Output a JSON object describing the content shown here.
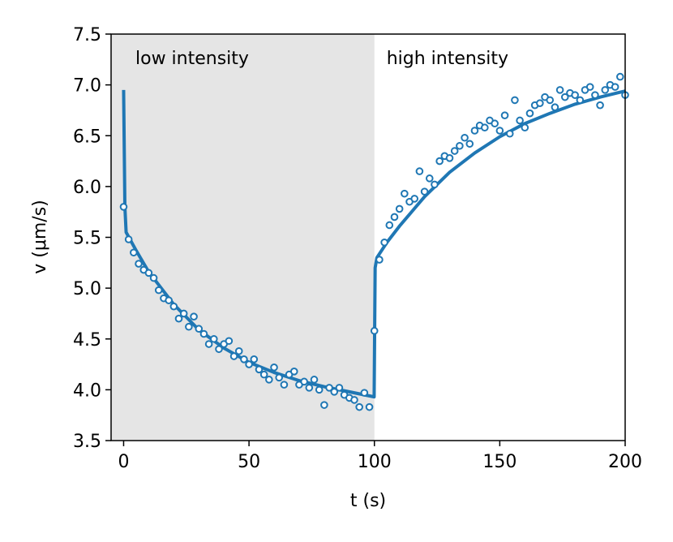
{
  "chart_data": {
    "type": "scatter",
    "xlabel": "t (s)",
    "ylabel": "v (μm/s)",
    "annotations": [
      "low intensity",
      "high intensity"
    ],
    "shaded_xrange": [
      -5,
      100
    ],
    "shade_color": "#e5e5e5",
    "xlim": [
      -5,
      200
    ],
    "xticks": [
      0,
      50,
      100,
      150,
      200
    ],
    "ylim": [
      3.5,
      7.5
    ],
    "yticks": [
      3.5,
      {
        "value": 4,
        "label": "4.0"
      },
      4.5,
      {
        "value": 5,
        "label": "5.0"
      },
      5.5,
      {
        "value": 6,
        "label": "6.0"
      },
      6.5,
      {
        "value": 7,
        "label": "7.0"
      },
      7.5
    ],
    "color": "#1f77b4",
    "points": {
      "x": [
        0,
        2,
        4,
        6,
        8,
        10,
        12,
        14,
        16,
        18,
        20,
        22,
        24,
        26,
        28,
        30,
        32,
        34,
        36,
        38,
        40,
        42,
        44,
        46,
        48,
        50,
        52,
        54,
        56,
        58,
        60,
        62,
        64,
        66,
        68,
        70,
        72,
        74,
        76,
        78,
        80,
        82,
        84,
        86,
        88,
        90,
        92,
        94,
        96,
        98,
        100,
        102,
        104,
        106,
        108,
        110,
        112,
        114,
        116,
        118,
        120,
        122,
        124,
        126,
        128,
        130,
        132,
        134,
        136,
        138,
        140,
        142,
        144,
        146,
        148,
        150,
        152,
        154,
        156,
        158,
        160,
        162,
        164,
        166,
        168,
        170,
        172,
        174,
        176,
        178,
        180,
        182,
        184,
        186,
        188,
        190,
        192,
        194,
        196,
        198,
        200
      ],
      "values": [
        5.8,
        5.48,
        5.35,
        5.24,
        5.18,
        5.15,
        5.1,
        4.98,
        4.9,
        4.88,
        4.82,
        4.7,
        4.75,
        4.62,
        4.72,
        4.6,
        4.55,
        4.45,
        4.5,
        4.4,
        4.45,
        4.48,
        4.33,
        4.38,
        4.3,
        4.25,
        4.3,
        4.2,
        4.15,
        4.1,
        4.22,
        4.12,
        4.05,
        4.15,
        4.18,
        4.05,
        4.08,
        4.02,
        4.1,
        4.0,
        3.85,
        4.02,
        3.98,
        4.02,
        3.95,
        3.92,
        3.9,
        3.83,
        3.97,
        3.83,
        4.58,
        5.28,
        5.45,
        5.62,
        5.7,
        5.78,
        5.93,
        5.85,
        5.88,
        6.15,
        5.95,
        6.08,
        6.02,
        6.25,
        6.3,
        6.28,
        6.35,
        6.4,
        6.48,
        6.42,
        6.55,
        6.6,
        6.58,
        6.65,
        6.62,
        6.55,
        6.7,
        6.52,
        6.85,
        6.65,
        6.58,
        6.72,
        6.8,
        6.82,
        6.88,
        6.85,
        6.78,
        6.95,
        6.88,
        6.92,
        6.9,
        6.85,
        6.95,
        6.98,
        6.9,
        6.8,
        6.95,
        7.0,
        6.98,
        7.08,
        6.9
      ]
    },
    "fit": {
      "x": [
        0,
        0.5,
        1,
        5,
        10,
        20,
        30,
        40,
        50,
        60,
        70,
        80,
        90,
        99.9,
        100.3,
        101,
        105,
        110,
        120,
        130,
        140,
        150,
        160,
        170,
        180,
        190,
        200
      ],
      "values": [
        6.95,
        5.8,
        5.55,
        5.37,
        5.16,
        4.84,
        4.59,
        4.41,
        4.27,
        4.17,
        4.09,
        4.03,
        3.98,
        3.93,
        5.2,
        5.3,
        5.45,
        5.61,
        5.9,
        6.14,
        6.33,
        6.49,
        6.62,
        6.72,
        6.81,
        6.88,
        6.94
      ]
    }
  }
}
